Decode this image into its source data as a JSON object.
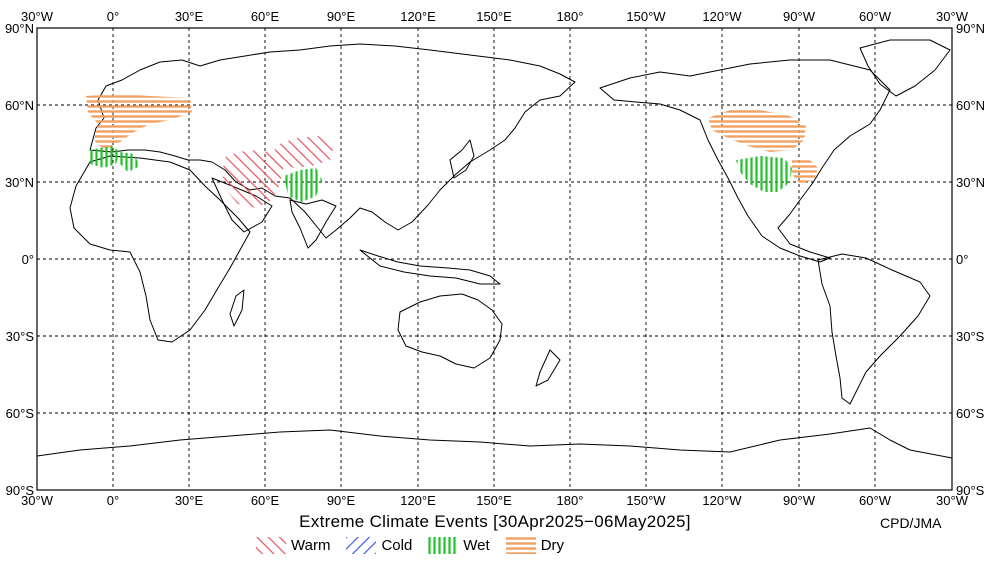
{
  "title": "Extreme Climate Events [30Apr2025−06May2025]",
  "credit": "CPD/JMA",
  "longitude_labels": [
    "30°W",
    "0°",
    "30°E",
    "60°E",
    "90°E",
    "120°E",
    "150°E",
    "180°",
    "150°W",
    "120°W",
    "90°W",
    "60°W",
    "30°W"
  ],
  "latitude_labels": [
    "90°N",
    "60°N",
    "30°N",
    "0°",
    "30°S",
    "60°S",
    "90°S"
  ],
  "legend": [
    {
      "label": "Warm",
      "color": "#e8505a",
      "pattern": "diagonal-up"
    },
    {
      "label": "Cold",
      "color": "#3a5fe0",
      "pattern": "diagonal-down"
    },
    {
      "label": "Wet",
      "color": "#22c22a",
      "pattern": "vertical"
    },
    {
      "label": "Dry",
      "color": "#f0a060",
      "pattern": "horizontal"
    }
  ],
  "events": [
    {
      "type": "Dry",
      "region": "Europe"
    },
    {
      "type": "Wet",
      "region": "Western Mediterranean"
    },
    {
      "type": "Warm",
      "region": "Middle East"
    },
    {
      "type": "Warm",
      "region": "Central Asia"
    },
    {
      "type": "Wet",
      "region": "Northwestern South Asia"
    },
    {
      "type": "Dry",
      "region": "Western Canada / Northern USA"
    },
    {
      "type": "Wet",
      "region": "Southern USA"
    },
    {
      "type": "Dry",
      "region": "Southeastern USA"
    }
  ]
}
